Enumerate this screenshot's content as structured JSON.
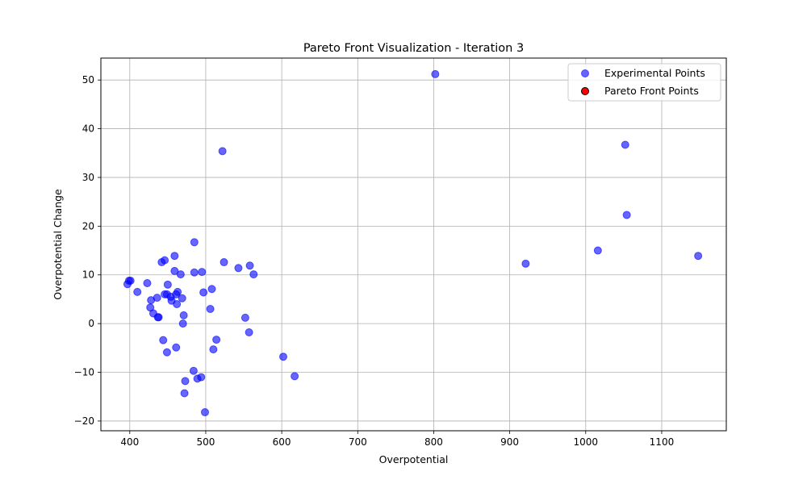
{
  "chart_data": {
    "type": "scatter",
    "title": "Pareto Front Visualization - Iteration 3",
    "xlabel": "Overpotential",
    "ylabel": "Overpotential Change",
    "xlim": [
      362,
      1185
    ],
    "ylim": [
      -22,
      54.5
    ],
    "xticks": [
      400,
      500,
      600,
      700,
      800,
      900,
      1000,
      1100
    ],
    "yticks": [
      -20,
      -10,
      0,
      10,
      20,
      30,
      40,
      50
    ],
    "grid": true,
    "legend_position": "top-right",
    "series": [
      {
        "name": "Experimental Points",
        "color": "#0000ff",
        "alpha": 0.6,
        "points": [
          [
            397,
            8.1
          ],
          [
            399,
            8.8
          ],
          [
            401,
            8.8
          ],
          [
            410,
            6.5
          ],
          [
            423,
            8.3
          ],
          [
            427,
            3.3
          ],
          [
            428,
            4.8
          ],
          [
            431,
            2.1
          ],
          [
            436,
            5.3
          ],
          [
            437,
            1.3
          ],
          [
            438,
            1.3
          ],
          [
            442,
            12.6
          ],
          [
            444,
            -3.4
          ],
          [
            446,
            13.0
          ],
          [
            446,
            6.0
          ],
          [
            449,
            6.0
          ],
          [
            450,
            8.0
          ],
          [
            449,
            -5.9
          ],
          [
            454,
            5.5
          ],
          [
            455,
            4.7
          ],
          [
            459,
            13.9
          ],
          [
            459,
            10.8
          ],
          [
            461,
            6.0
          ],
          [
            461,
            -4.9
          ],
          [
            462,
            4.0
          ],
          [
            463,
            6.5
          ],
          [
            467,
            10.1
          ],
          [
            469,
            5.2
          ],
          [
            470,
            0.0
          ],
          [
            471,
            1.7
          ],
          [
            473,
            -11.8
          ],
          [
            472,
            -14.3
          ],
          [
            484,
            -9.7
          ],
          [
            485,
            16.7
          ],
          [
            485,
            10.5
          ],
          [
            489,
            -11.3
          ],
          [
            494,
            -11.0
          ],
          [
            495,
            10.6
          ],
          [
            497,
            6.4
          ],
          [
            499,
            -18.2
          ],
          [
            506,
            3.0
          ],
          [
            508,
            7.1
          ],
          [
            510,
            -5.3
          ],
          [
            514,
            -3.3
          ],
          [
            522,
            35.4
          ],
          [
            524,
            12.6
          ],
          [
            543,
            11.4
          ],
          [
            552,
            1.2
          ],
          [
            557,
            -1.8
          ],
          [
            558,
            11.9
          ],
          [
            563,
            10.1
          ],
          [
            602,
            -6.8
          ],
          [
            617,
            -10.8
          ],
          [
            802,
            51.2
          ],
          [
            921,
            12.3
          ],
          [
            1016,
            15.0
          ],
          [
            1052,
            36.7
          ],
          [
            1054,
            22.3
          ],
          [
            1148,
            13.9
          ]
        ]
      },
      {
        "name": "Pareto Front Points",
        "color": "#ff0000",
        "edge_color": "#000000",
        "points": []
      }
    ]
  }
}
